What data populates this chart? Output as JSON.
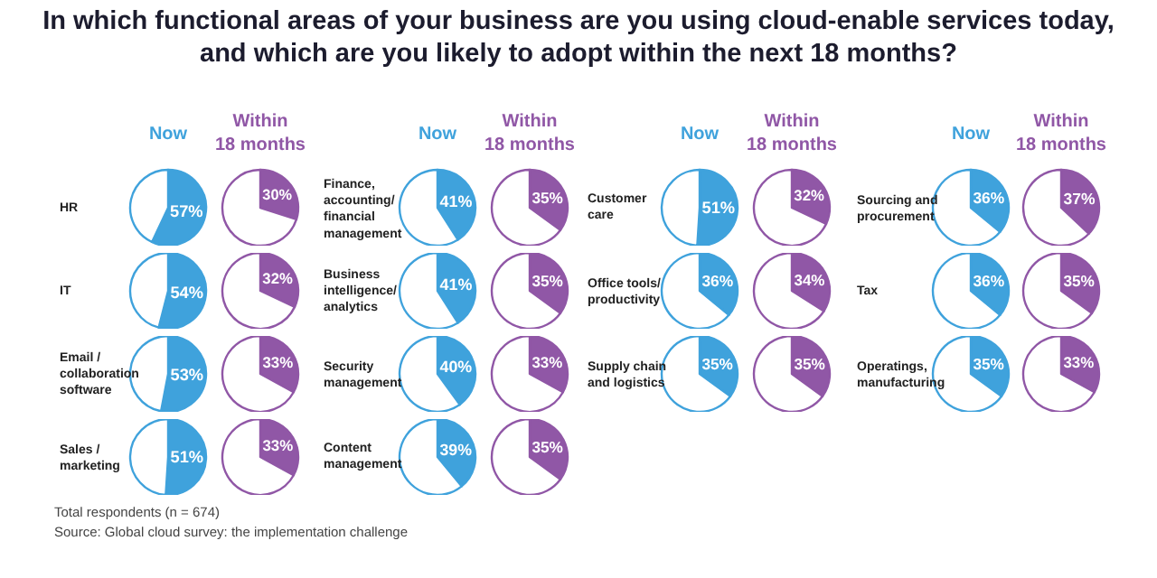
{
  "chart_data": [
    {
      "type": "other",
      "title": "In which functional areas of your business are you using cloud-enable services today,\nand which are you likely to adopt  within the next 18 months?",
      "annotations": [
        "Total respondents (n = 674)",
        "Source: Global cloud survey: the implementation challenge"
      ]
    },
    {
      "type": "pie",
      "title": "Now",
      "annotations": [
        "HR"
      ],
      "categories": [
        null,
        null
      ],
      "values": [
        57,
        43
      ],
      "colors": [
        "#3fa2dc",
        "#ffffff"
      ],
      "value_labels": [
        "57%",
        null
      ]
    },
    {
      "type": "pie",
      "title": "Within\n18 months",
      "categories": [
        null,
        null
      ],
      "values": [
        30,
        70
      ],
      "colors": [
        "#9057a6",
        "#ffffff"
      ],
      "value_labels": [
        "30%",
        null
      ]
    },
    {
      "type": "pie",
      "annotations": [
        "IT"
      ],
      "categories": [
        null,
        null
      ],
      "values": [
        54,
        46
      ],
      "colors": [
        "#3fa2dc",
        "#ffffff"
      ],
      "value_labels": [
        "54%",
        null
      ]
    },
    {
      "type": "pie",
      "categories": [
        null,
        null
      ],
      "values": [
        32,
        68
      ],
      "colors": [
        "#9057a6",
        "#ffffff"
      ],
      "value_labels": [
        "32%",
        null
      ]
    },
    {
      "type": "pie",
      "annotations": [
        "Email /\ncollaboration\nsoftware"
      ],
      "categories": [
        null,
        null
      ],
      "values": [
        53,
        47
      ],
      "colors": [
        "#3fa2dc",
        "#ffffff"
      ],
      "value_labels": [
        "53%",
        null
      ]
    },
    {
      "type": "pie",
      "categories": [
        null,
        null
      ],
      "values": [
        33,
        67
      ],
      "colors": [
        "#9057a6",
        "#ffffff"
      ],
      "value_labels": [
        "33%",
        null
      ]
    },
    {
      "type": "pie",
      "annotations": [
        "Sales /\nmarketing"
      ],
      "categories": [
        null,
        null
      ],
      "values": [
        51,
        49
      ],
      "colors": [
        "#3fa2dc",
        "#ffffff"
      ],
      "value_labels": [
        "51%",
        null
      ]
    },
    {
      "type": "pie",
      "categories": [
        null,
        null
      ],
      "values": [
        33,
        67
      ],
      "colors": [
        "#9057a6",
        "#ffffff"
      ],
      "value_labels": [
        "33%",
        null
      ]
    },
    {
      "type": "pie",
      "title": "Now",
      "annotations": [
        "Finance,\naccounting/\nfinancial\nmanagement"
      ],
      "categories": [
        null,
        null
      ],
      "values": [
        41,
        59
      ],
      "colors": [
        "#3fa2dc",
        "#ffffff"
      ],
      "value_labels": [
        "41%",
        null
      ]
    },
    {
      "type": "pie",
      "title": "Within\n18 months",
      "categories": [
        null,
        null
      ],
      "values": [
        35,
        65
      ],
      "colors": [
        "#9057a6",
        "#ffffff"
      ],
      "value_labels": [
        "35%",
        null
      ]
    },
    {
      "type": "pie",
      "annotations": [
        "Business\nintelligence/\nanalytics"
      ],
      "categories": [
        null,
        null
      ],
      "values": [
        41,
        59
      ],
      "colors": [
        "#3fa2dc",
        "#ffffff"
      ],
      "value_labels": [
        "41%",
        null
      ]
    },
    {
      "type": "pie",
      "categories": [
        null,
        null
      ],
      "values": [
        35,
        65
      ],
      "colors": [
        "#9057a6",
        "#ffffff"
      ],
      "value_labels": [
        "35%",
        null
      ]
    },
    {
      "type": "pie",
      "annotations": [
        "Security\nmanagement"
      ],
      "categories": [
        null,
        null
      ],
      "values": [
        40,
        60
      ],
      "colors": [
        "#3fa2dc",
        "#ffffff"
      ],
      "value_labels": [
        "40%",
        null
      ]
    },
    {
      "type": "pie",
      "categories": [
        null,
        null
      ],
      "values": [
        33,
        67
      ],
      "colors": [
        "#9057a6",
        "#ffffff"
      ],
      "value_labels": [
        "33%",
        null
      ]
    },
    {
      "type": "pie",
      "annotations": [
        "Content\nmanagement"
      ],
      "categories": [
        null,
        null
      ],
      "values": [
        39,
        61
      ],
      "colors": [
        "#3fa2dc",
        "#ffffff"
      ],
      "value_labels": [
        "39%",
        null
      ]
    },
    {
      "type": "pie",
      "categories": [
        null,
        null
      ],
      "values": [
        35,
        65
      ],
      "colors": [
        "#9057a6",
        "#ffffff"
      ],
      "value_labels": [
        "35%",
        null
      ]
    },
    {
      "type": "pie",
      "title": "Now",
      "annotations": [
        "Customer\ncare"
      ],
      "categories": [
        null,
        null
      ],
      "values": [
        51,
        49
      ],
      "colors": [
        "#3fa2dc",
        "#ffffff"
      ],
      "value_labels": [
        "51%",
        null
      ]
    },
    {
      "type": "pie",
      "title": "Within\n18 months",
      "categories": [
        null,
        null
      ],
      "values": [
        32,
        68
      ],
      "colors": [
        "#9057a6",
        "#ffffff"
      ],
      "value_labels": [
        "32%",
        null
      ]
    },
    {
      "type": "pie",
      "annotations": [
        "Office tools/\nproductivity"
      ],
      "categories": [
        null,
        null
      ],
      "values": [
        36,
        64
      ],
      "colors": [
        "#3fa2dc",
        "#ffffff"
      ],
      "value_labels": [
        "36%",
        null
      ]
    },
    {
      "type": "pie",
      "categories": [
        null,
        null
      ],
      "values": [
        34,
        66
      ],
      "colors": [
        "#9057a6",
        "#ffffff"
      ],
      "value_labels": [
        "34%",
        null
      ]
    },
    {
      "type": "pie",
      "annotations": [
        "Supply chain\nand logistics"
      ],
      "categories": [
        null,
        null
      ],
      "values": [
        35,
        65
      ],
      "colors": [
        "#3fa2dc",
        "#ffffff"
      ],
      "value_labels": [
        "35%",
        null
      ]
    },
    {
      "type": "pie",
      "categories": [
        null,
        null
      ],
      "values": [
        35,
        65
      ],
      "colors": [
        "#9057a6",
        "#ffffff"
      ],
      "value_labels": [
        "35%",
        null
      ]
    },
    {
      "type": "pie",
      "title": "Now",
      "annotations": [
        "Sourcing and\nprocurement"
      ],
      "categories": [
        null,
        null
      ],
      "values": [
        36,
        64
      ],
      "colors": [
        "#3fa2dc",
        "#ffffff"
      ],
      "value_labels": [
        "36%",
        null
      ]
    },
    {
      "type": "pie",
      "title": "Within\n18 months",
      "categories": [
        null,
        null
      ],
      "values": [
        37,
        63
      ],
      "colors": [
        "#9057a6",
        "#ffffff"
      ],
      "value_labels": [
        "37%",
        null
      ]
    },
    {
      "type": "pie",
      "annotations": [
        "Tax"
      ],
      "categories": [
        null,
        null
      ],
      "values": [
        36,
        64
      ],
      "colors": [
        "#3fa2dc",
        "#ffffff"
      ],
      "value_labels": [
        "36%",
        null
      ]
    },
    {
      "type": "pie",
      "categories": [
        null,
        null
      ],
      "values": [
        35,
        65
      ],
      "colors": [
        "#9057a6",
        "#ffffff"
      ],
      "value_labels": [
        "35%",
        null
      ]
    },
    {
      "type": "pie",
      "annotations": [
        "Operatings,\nmanufacturing"
      ],
      "categories": [
        null,
        null
      ],
      "values": [
        35,
        65
      ],
      "colors": [
        "#3fa2dc",
        "#ffffff"
      ],
      "value_labels": [
        "35%",
        null
      ]
    },
    {
      "type": "pie",
      "categories": [
        null,
        null
      ],
      "values": [
        33,
        67
      ],
      "colors": [
        "#9057a6",
        "#ffffff"
      ],
      "value_labels": [
        "33%",
        null
      ]
    }
  ]
}
